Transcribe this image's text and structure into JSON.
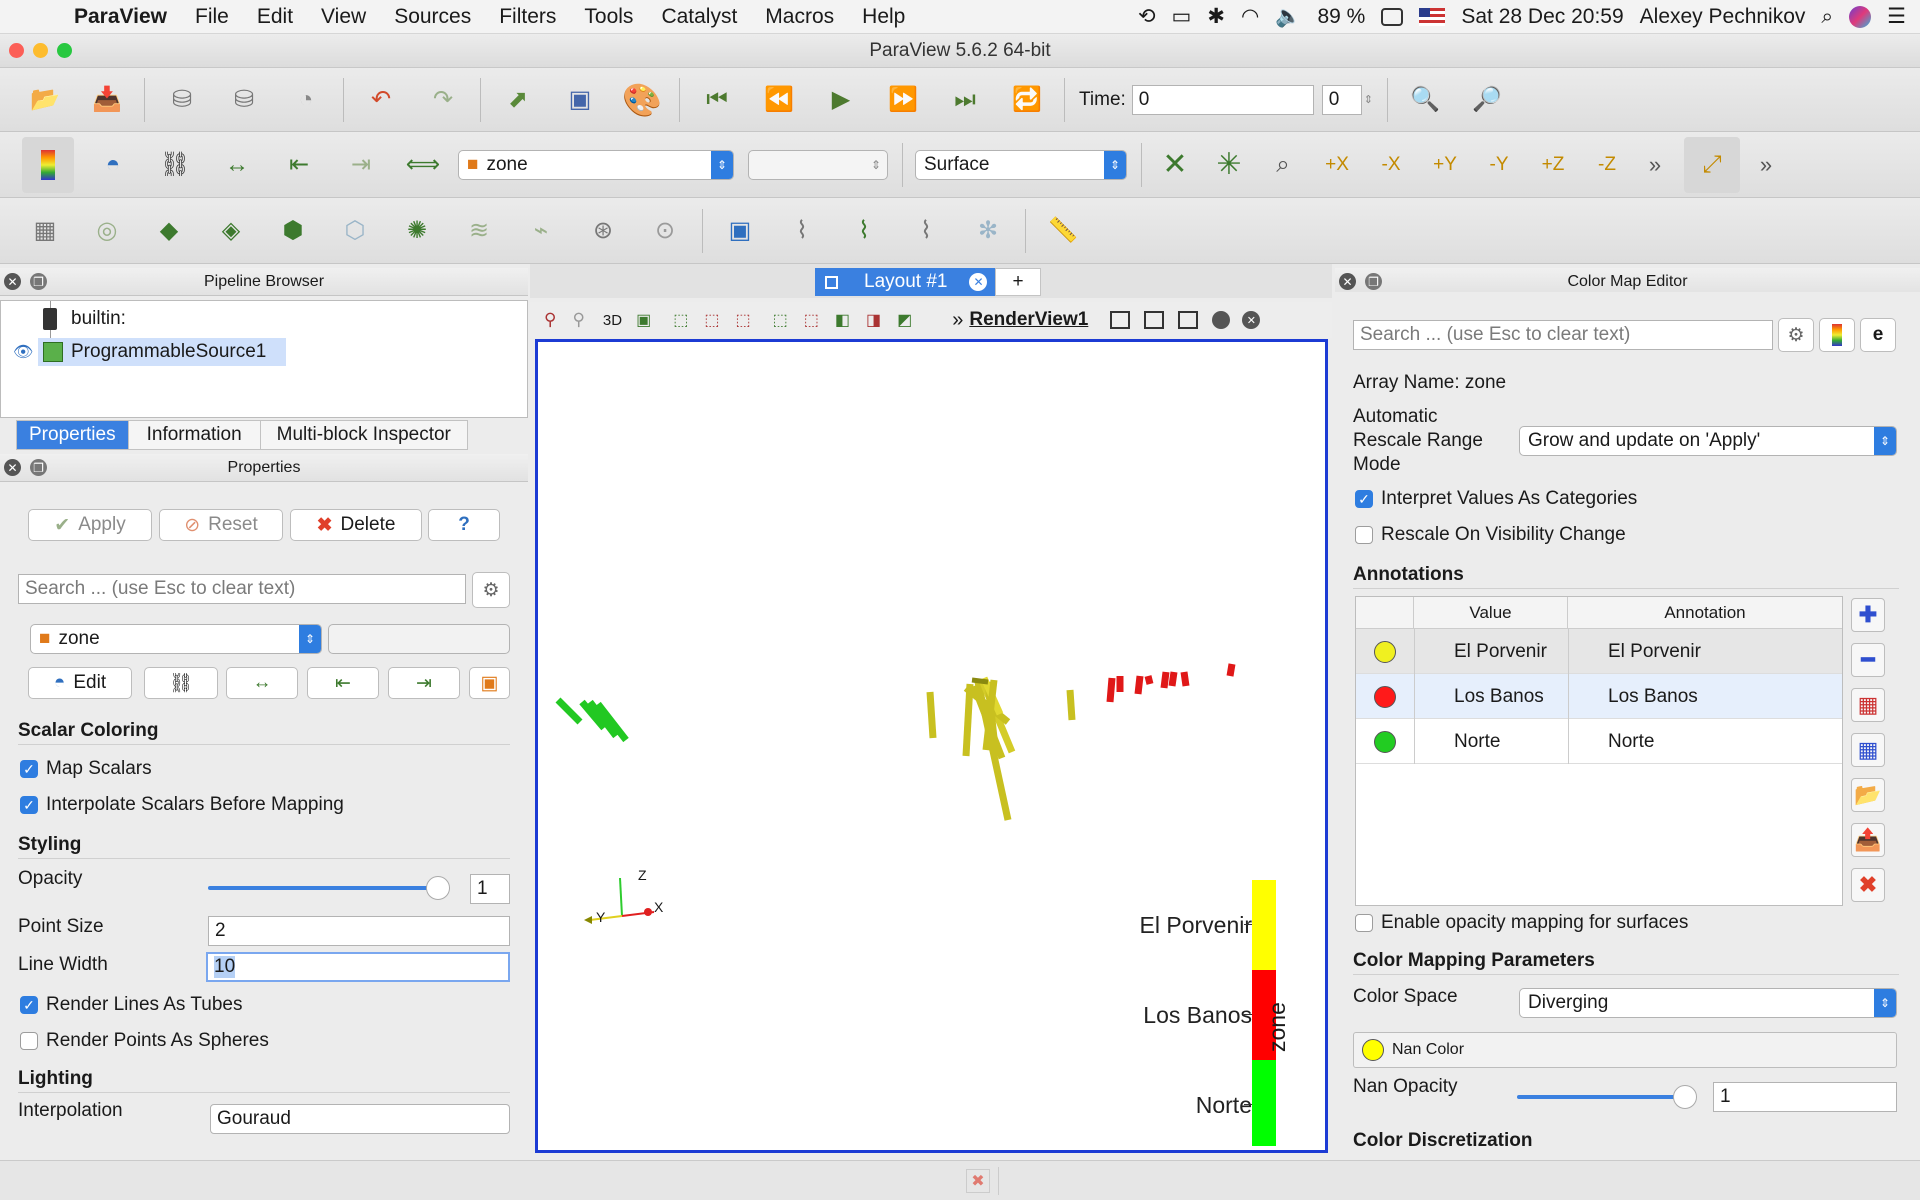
{
  "menubar": {
    "app": "ParaView",
    "items": [
      "File",
      "Edit",
      "View",
      "Sources",
      "Filters",
      "Tools",
      "Catalyst",
      "Macros",
      "Help"
    ],
    "battery": "89 %",
    "datetime": "Sat 28 Dec  20:59",
    "user": "Alexey Pechnikov"
  },
  "window": {
    "title": "ParaView 5.6.2 64-bit"
  },
  "toolbar1": {
    "time_label": "Time:",
    "time_value": "0",
    "time_index": "0"
  },
  "toolbar2": {
    "array_combo": "zone",
    "representation_combo": "Surface",
    "views": [
      "+X",
      "-X",
      "+Y",
      "-Y",
      "+Z",
      "-Z"
    ]
  },
  "pipeline": {
    "title": "Pipeline Browser",
    "items": [
      {
        "label": "builtin:"
      },
      {
        "label": "ProgrammableSource1"
      }
    ]
  },
  "left_tabs": [
    "Properties",
    "Information",
    "Multi-block Inspector"
  ],
  "properties": {
    "title": "Properties",
    "apply": "Apply",
    "reset": "Reset",
    "delete": "Delete",
    "help": "?",
    "search_placeholder": "Search ... (use Esc to clear text)",
    "coloring_combo": "zone",
    "edit": "Edit",
    "scalar_coloring": "Scalar Coloring",
    "map_scalars": "Map Scalars",
    "interpolate_scalars": "Interpolate Scalars Before Mapping",
    "styling": "Styling",
    "opacity_label": "Opacity",
    "opacity_value": "1",
    "point_size_label": "Point Size",
    "point_size_value": "2",
    "line_width_label": "Line Width",
    "line_width_value": "10",
    "render_lines_tubes": "Render Lines As Tubes",
    "render_points_spheres": "Render Points As Spheres",
    "lighting": "Lighting",
    "interpolation_label": "Interpolation",
    "interpolation_value": "Gouraud"
  },
  "layout": {
    "tab": "Layout #1",
    "add": "+",
    "view_name": "RenderView1",
    "mode_3d": "3D"
  },
  "legend": {
    "title": "zone",
    "entries": [
      {
        "label": "El Porvenir",
        "color": "#ffff00"
      },
      {
        "label": "Los Banos",
        "color": "#ff0000"
      },
      {
        "label": "Norte",
        "color": "#00ff00"
      }
    ]
  },
  "axes": {
    "z": "Z",
    "y": "Y",
    "x": "X"
  },
  "colormap": {
    "title": "Color Map Editor",
    "search_placeholder": "Search ... (use Esc to clear text)",
    "array_name": "Array Name: zone",
    "rescale_label_1": "Automatic",
    "rescale_label_2": "Rescale Range",
    "rescale_label_3": "Mode",
    "rescale_value": "Grow and update on 'Apply'",
    "interpret_categories": "Interpret Values As Categories",
    "rescale_visibility": "Rescale On Visibility Change",
    "annotations_heading": "Annotations",
    "col_value": "Value",
    "col_annotation": "Annotation",
    "rows": [
      {
        "value": "El Porvenir",
        "annotation": "El Porvenir",
        "color": "#f0f020"
      },
      {
        "value": "Los Banos",
        "annotation": "Los Banos",
        "color": "#ff1a1a"
      },
      {
        "value": "Norte",
        "annotation": "Norte",
        "color": "#22cc22"
      }
    ],
    "opacity_mapping": "Enable opacity mapping for surfaces",
    "mapping_params": "Color Mapping Parameters",
    "color_space_label": "Color Space",
    "color_space_value": "Diverging",
    "nan_color": "Nan Color",
    "nan_opacity_label": "Nan Opacity",
    "nan_opacity_value": "1",
    "discretization": "Color Discretization"
  }
}
